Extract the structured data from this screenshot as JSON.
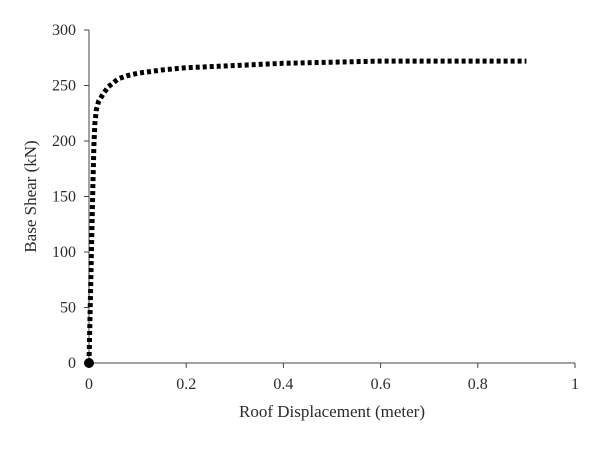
{
  "chart_data": {
    "type": "line",
    "title": "",
    "xlabel": "Roof Displacement (meter)",
    "ylabel": "Base Shear (kN)",
    "xlim": [
      0,
      1
    ],
    "ylim": [
      0,
      300
    ],
    "x_ticks": [
      0,
      0.2,
      0.4,
      0.6,
      0.8,
      1
    ],
    "x_tick_labels": [
      "0",
      "0.2",
      "0.4",
      "0.6",
      "0.8",
      "1"
    ],
    "y_ticks": [
      0,
      50,
      100,
      150,
      200,
      250,
      300
    ],
    "y_tick_labels": [
      "0",
      "50",
      "100",
      "150",
      "200",
      "250",
      "300"
    ],
    "grid": false,
    "legend": "none",
    "series": [
      {
        "line_style": "dotted",
        "color": "#000000",
        "marker_at_origin": true,
        "x": [
          0,
          0.002,
          0.004,
          0.006,
          0.008,
          0.01,
          0.012,
          0.015,
          0.02,
          0.03,
          0.04,
          0.06,
          0.08,
          0.1,
          0.15,
          0.2,
          0.3,
          0.4,
          0.5,
          0.6,
          0.7,
          0.8,
          0.9
        ],
        "y": [
          0,
          40,
          80,
          120,
          160,
          195,
          215,
          228,
          236,
          243,
          249,
          256,
          259,
          261,
          264,
          266,
          268,
          270,
          271,
          272,
          272,
          272,
          272
        ]
      }
    ]
  }
}
